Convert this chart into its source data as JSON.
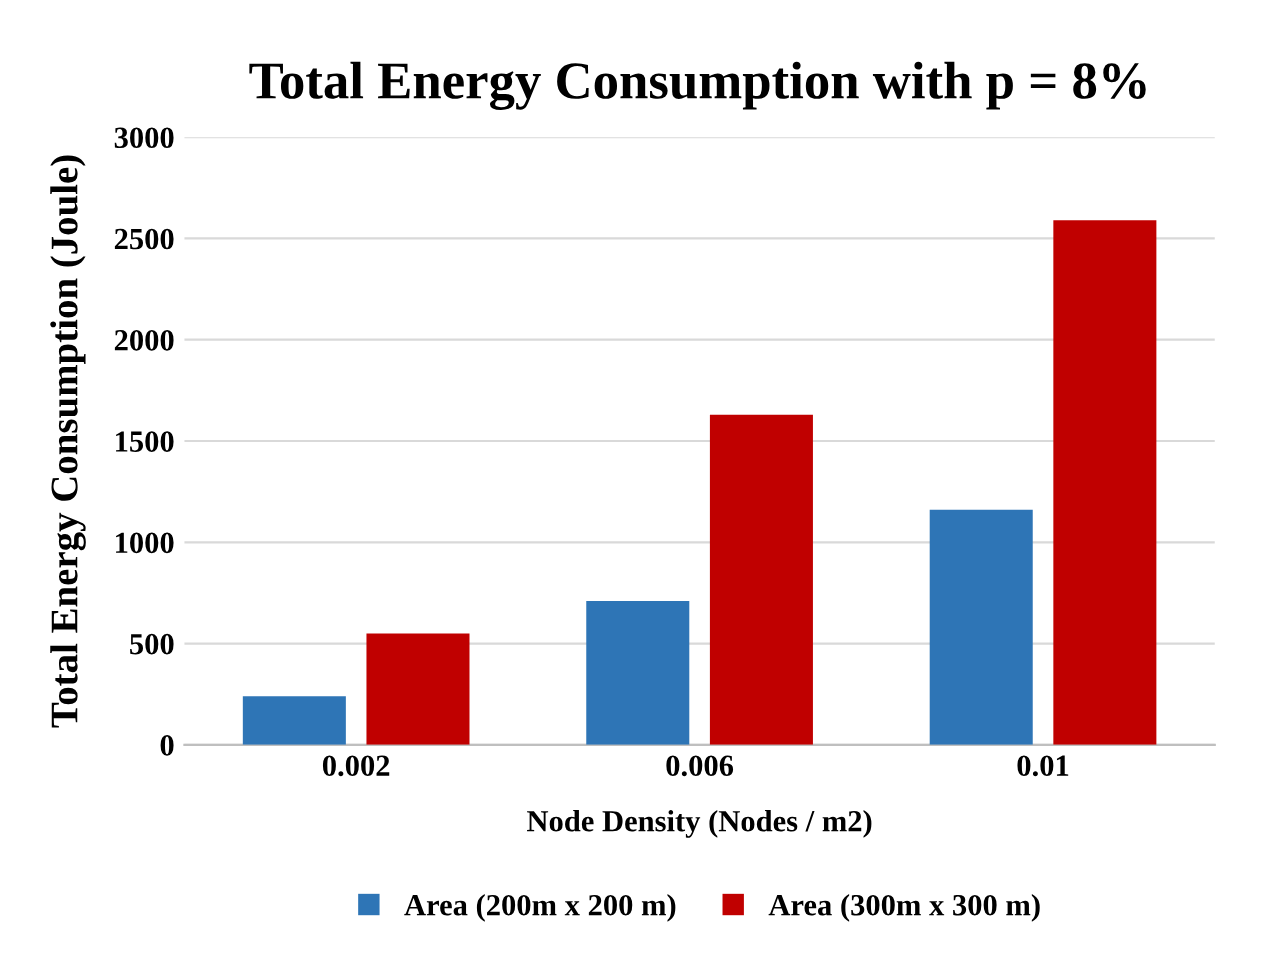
{
  "chart_data": {
    "type": "bar",
    "title": "Total Energy Consumption with p = 8%",
    "xlabel": "Node Density (Nodes / m2)",
    "ylabel": "Total Energy Consumption (Joule)",
    "categories": [
      "0.002",
      "0.006",
      "0.01"
    ],
    "series": [
      {
        "name": "Area (200m x 200 m)",
        "color": "#2e75b6",
        "values": [
          240,
          710,
          1160
        ]
      },
      {
        "name": "Area (300m x 300 m)",
        "color": "#c00000",
        "values": [
          550,
          1630,
          2590
        ]
      }
    ],
    "ylim": [
      0,
      3000
    ],
    "yticks": [
      0,
      500,
      1000,
      1500,
      2000,
      2500,
      3000
    ],
    "grid": "y",
    "legend": "bottom"
  }
}
